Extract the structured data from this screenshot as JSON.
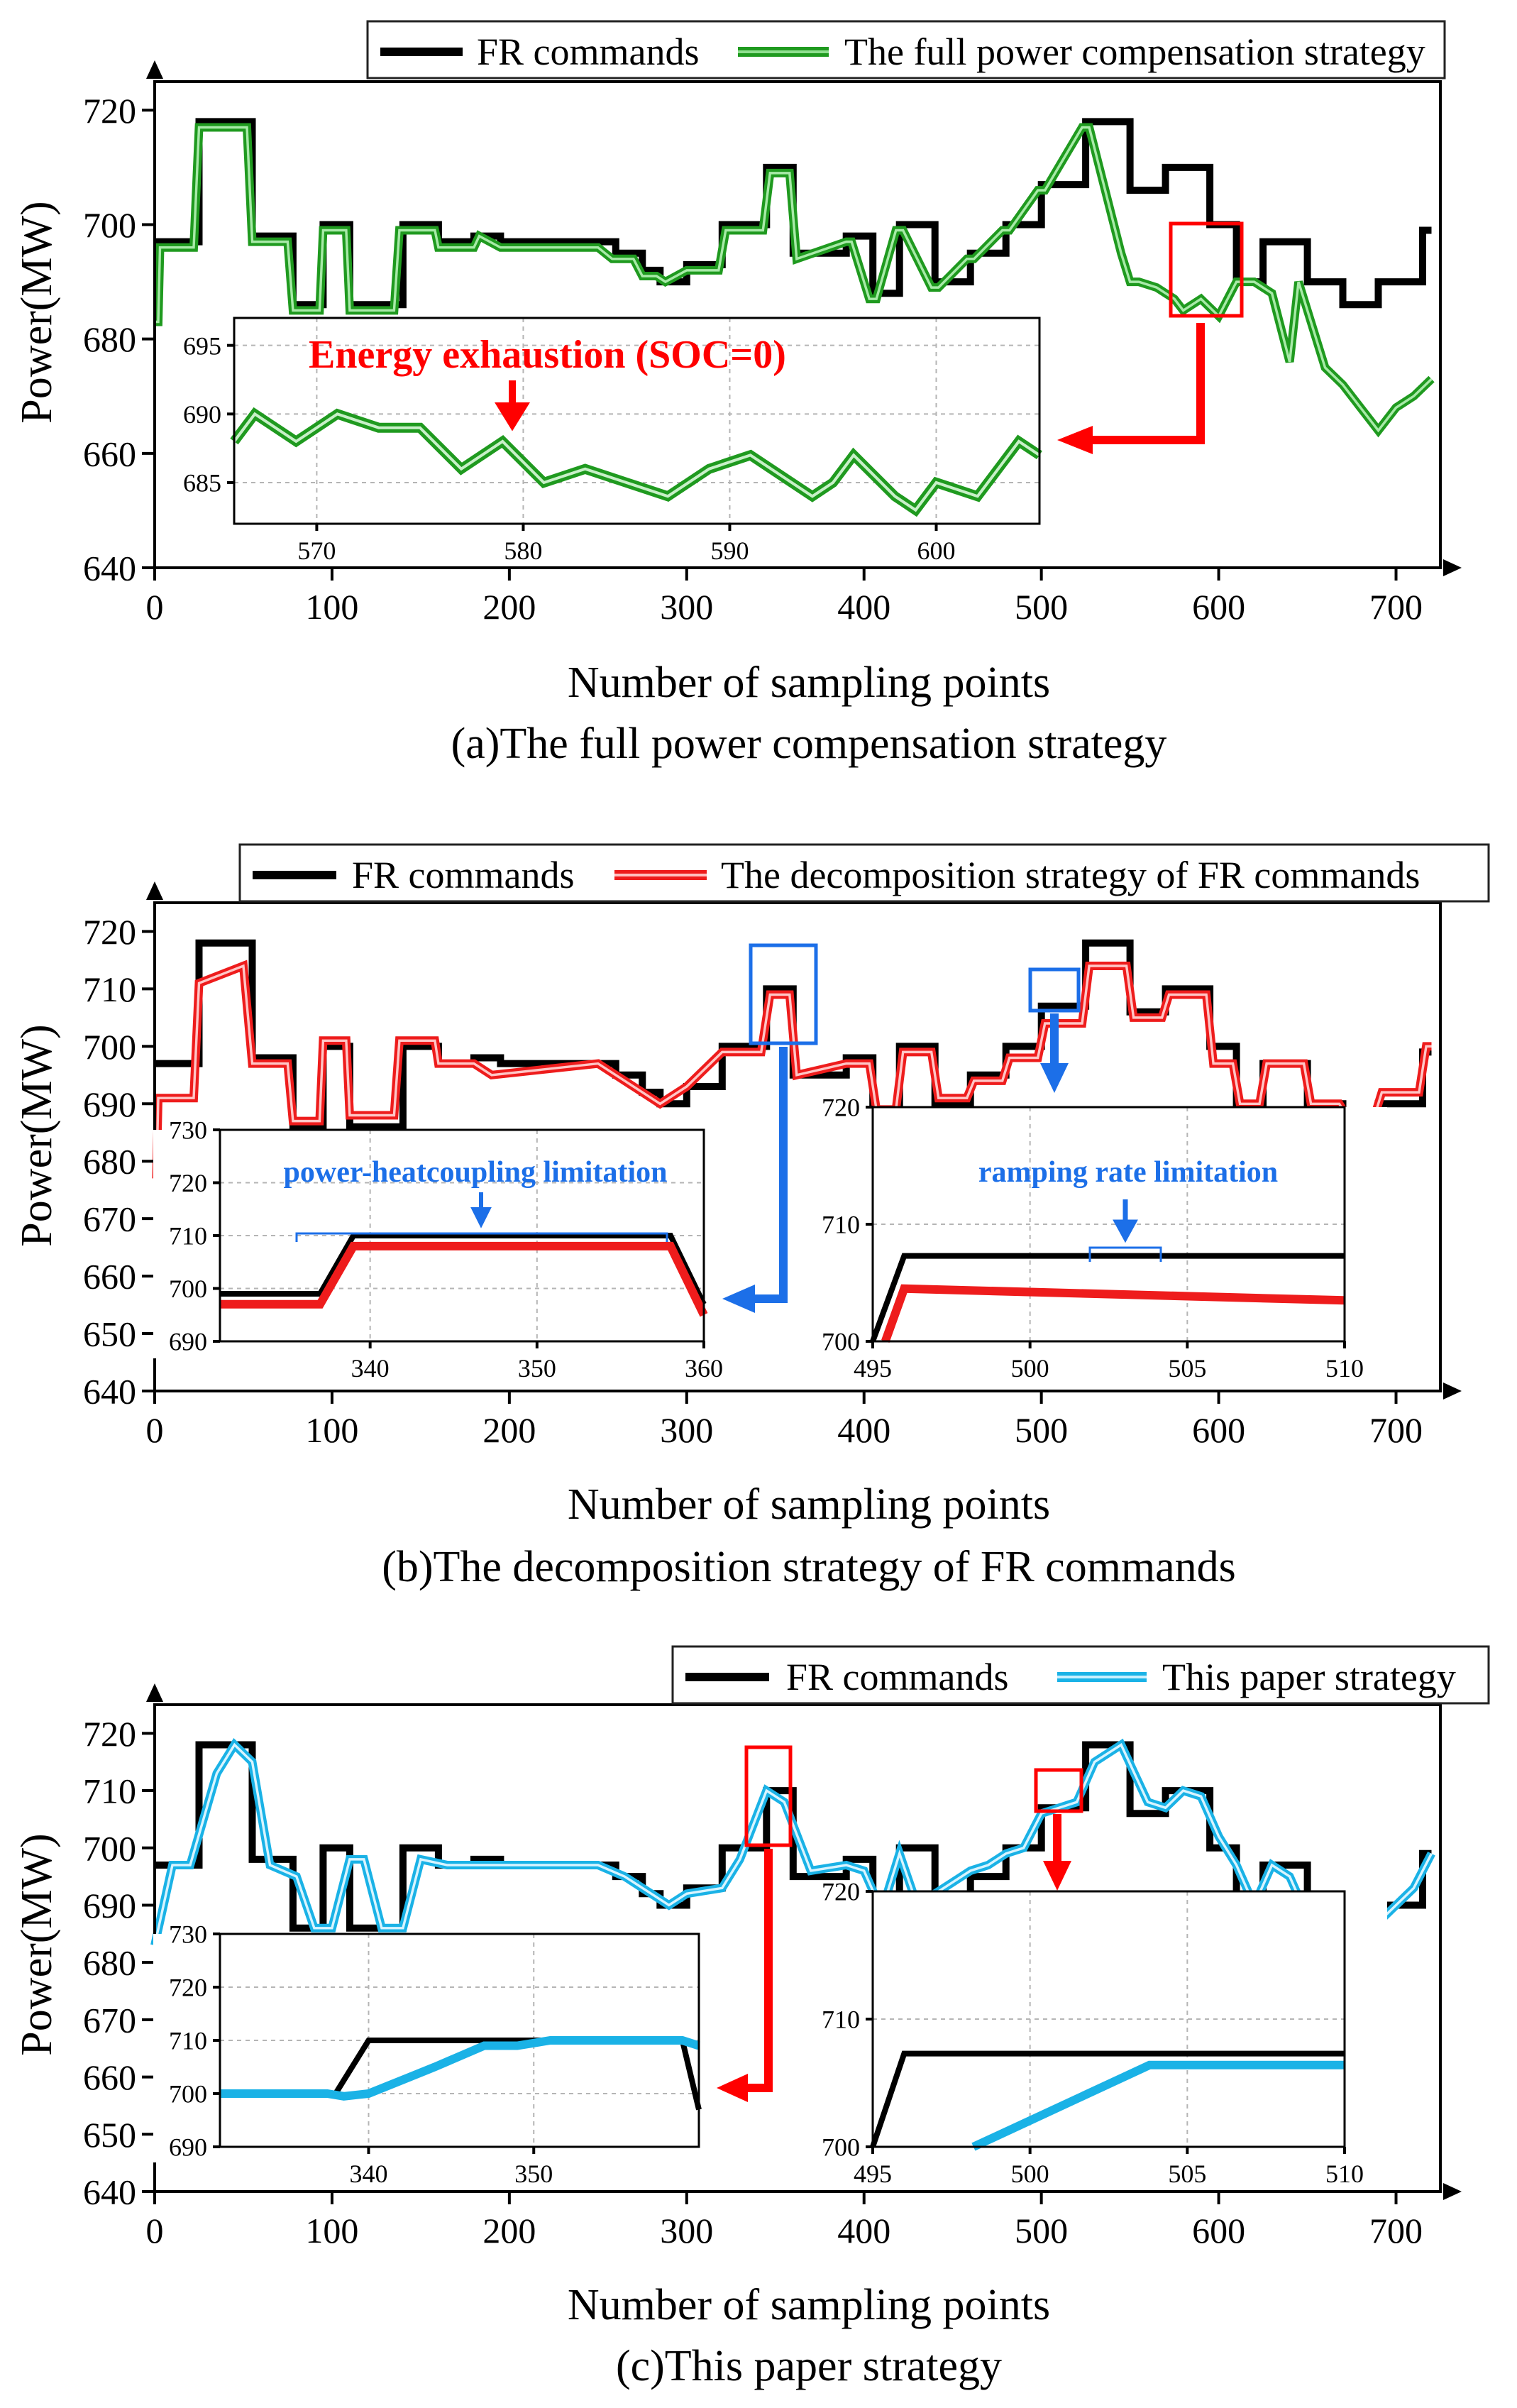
{
  "colors": {
    "fr": "#000000",
    "green": "#1f9a1f",
    "red": "#ee1c1c",
    "cyan": "#1ab2e6",
    "blue_annot": "#1c6fe8",
    "red_annot": "#ff0000",
    "grid": "#b5b5b5"
  },
  "chart_data": [
    {
      "type": "line",
      "caption": "(a)The full power compensation strategy",
      "xlabel": "Number of sampling points",
      "ylabel": "Power(MW)",
      "xlim": [
        0,
        725
      ],
      "ylim": [
        640,
        725
      ],
      "xticks": [
        0,
        100,
        200,
        300,
        400,
        500,
        600,
        700
      ],
      "yticks": [
        640,
        660,
        680,
        700,
        720
      ],
      "legend_position": "top-right",
      "series": [
        {
          "name": "FR commands",
          "style": "step",
          "x": [
            0,
            25,
            55,
            78,
            95,
            110,
            135,
            140,
            160,
            180,
            195,
            250,
            260,
            275,
            285,
            300,
            320,
            345,
            360,
            390,
            405,
            420,
            440,
            460,
            480,
            500,
            525,
            550,
            570,
            595,
            610,
            625,
            650,
            670,
            690,
            715
          ],
          "y": [
            697,
            718,
            698,
            686,
            700,
            686,
            686,
            700,
            697,
            698,
            697,
            697,
            695,
            692,
            690,
            693,
            700,
            710,
            695,
            698,
            688,
            700,
            690,
            695,
            700,
            707,
            718,
            706,
            710,
            700,
            690,
            697,
            690,
            686,
            690,
            699
          ]
        },
        {
          "name": "The full power compensation strategy",
          "style": "line",
          "x": [
            0,
            2,
            3,
            22,
            25,
            52,
            55,
            75,
            78,
            93,
            95,
            108,
            110,
            135,
            138,
            158,
            160,
            180,
            183,
            195,
            250,
            258,
            270,
            275,
            283,
            288,
            300,
            318,
            322,
            343,
            347,
            358,
            362,
            390,
            393,
            403,
            407,
            418,
            422,
            438,
            442,
            458,
            462,
            478,
            482,
            498,
            502,
            523,
            527,
            545,
            550,
            555,
            565,
            575,
            580,
            590,
            600,
            610,
            620,
            630,
            640,
            645,
            650,
            660,
            670,
            680,
            690,
            700,
            710,
            720
          ],
          "y": [
            683,
            683,
            696,
            696,
            717,
            717,
            697,
            697,
            685,
            685,
            699,
            699,
            685,
            685,
            699,
            699,
            696,
            696,
            698,
            696,
            696,
            694,
            694,
            691,
            691,
            690,
            692,
            692,
            699,
            699,
            709,
            709,
            694,
            697,
            697,
            687,
            687,
            699,
            699,
            689,
            689,
            694,
            694,
            699,
            699,
            706,
            706,
            717,
            717,
            695,
            690,
            690,
            689,
            687,
            685,
            687,
            684,
            690,
            690,
            688,
            676,
            690,
            685,
            675,
            672,
            668,
            664,
            668,
            670,
            673
          ]
        }
      ],
      "inset": {
        "xlim": [
          566,
          605
        ],
        "ylim": [
          682,
          697
        ],
        "xticks": [
          570,
          580,
          590,
          600
        ],
        "yticks": [
          685,
          690,
          695
        ],
        "annotation": "Energy exhaustion (SOC=0)",
        "series_x": [
          566,
          567,
          569,
          571,
          573,
          575,
          577,
          579,
          581,
          583,
          585,
          587,
          589,
          591,
          593,
          594,
          595,
          596,
          598,
          599,
          600,
          602,
          603,
          604,
          605
        ],
        "series_y": [
          688,
          690,
          688,
          690,
          689,
          689,
          686,
          688,
          685,
          686,
          685,
          684,
          686,
          687,
          685,
          684,
          685,
          687,
          684,
          683,
          685,
          684,
          686,
          688,
          687
        ]
      }
    },
    {
      "type": "line",
      "caption": "(b)The decomposition strategy of FR commands",
      "xlabel": "Number of sampling points",
      "ylabel": "Power(MW)",
      "xlim": [
        0,
        725
      ],
      "ylim": [
        640,
        725
      ],
      "xticks": [
        0,
        100,
        200,
        300,
        400,
        500,
        600,
        700
      ],
      "yticks": [
        640,
        650,
        660,
        670,
        680,
        690,
        700,
        710,
        720
      ],
      "legend_position": "top-right",
      "series": [
        {
          "name": "FR commands",
          "style": "step",
          "x": [
            0,
            25,
            55,
            78,
            95,
            110,
            135,
            140,
            160,
            180,
            195,
            250,
            260,
            275,
            285,
            300,
            320,
            345,
            360,
            390,
            405,
            420,
            440,
            460,
            480,
            500,
            525,
            550,
            570,
            595,
            610,
            625,
            650,
            670,
            690,
            715
          ],
          "y": [
            697,
            718,
            698,
            686,
            700,
            686,
            686,
            700,
            697,
            698,
            697,
            697,
            695,
            692,
            690,
            693,
            700,
            710,
            695,
            698,
            688,
            700,
            690,
            695,
            700,
            707,
            718,
            706,
            710,
            700,
            690,
            697,
            690,
            686,
            690,
            699
          ]
        },
        {
          "name": "The decomposition strategy of FR commands",
          "style": "line",
          "x": [
            0,
            1,
            2,
            22,
            25,
            50,
            55,
            75,
            78,
            93,
            95,
            108,
            110,
            135,
            138,
            158,
            160,
            180,
            190,
            250,
            260,
            275,
            285,
            300,
            320,
            342,
            347,
            358,
            362,
            390,
            403,
            407,
            418,
            422,
            438,
            442,
            458,
            462,
            478,
            482,
            498,
            502,
            523,
            527,
            548,
            552,
            568,
            572,
            593,
            597,
            608,
            612,
            623,
            627,
            648,
            652,
            668,
            672,
            688,
            692,
            713,
            717,
            720
          ],
          "y": [
            677,
            677,
            691,
            691,
            711,
            714,
            697,
            697,
            687,
            687,
            701,
            701,
            688,
            688,
            701,
            701,
            697,
            697,
            695,
            697,
            695,
            692,
            690,
            693,
            699,
            699,
            709,
            709,
            695,
            697,
            697,
            689,
            689,
            699,
            699,
            691,
            691,
            694,
            694,
            698,
            698,
            704,
            704,
            714,
            714,
            705,
            705,
            709,
            709,
            697,
            697,
            690,
            690,
            697,
            697,
            690,
            690,
            688,
            688,
            692,
            692,
            700,
            700
          ]
        }
      ],
      "insets": [
        {
          "xlim": [
            331,
            360
          ],
          "ylim": [
            690,
            730
          ],
          "xticks": [
            340,
            350,
            360
          ],
          "yticks": [
            690,
            700,
            710,
            720,
            730
          ],
          "annotation": "power-heatcoupling limitation",
          "fr_x": [
            331,
            337,
            339,
            358,
            360
          ],
          "fr_y": [
            699,
            699,
            710,
            710,
            697
          ],
          "strategy_x": [
            331,
            337,
            339,
            358,
            360
          ],
          "strategy_y": [
            697,
            697,
            708,
            708,
            695
          ]
        },
        {
          "xlim": [
            495,
            510
          ],
          "ylim": [
            700,
            720
          ],
          "xticks": [
            495,
            500,
            505,
            510
          ],
          "yticks": [
            700,
            710,
            720
          ],
          "annotation": "ramping rate limitation",
          "fr_x": [
            495,
            496,
            510
          ],
          "fr_y": [
            700,
            707.3,
            707.3
          ],
          "strategy_x": [
            495.4,
            496,
            510
          ],
          "strategy_y": [
            700,
            704.5,
            703.5
          ]
        }
      ]
    },
    {
      "type": "line",
      "caption": "(c)This paper strategy",
      "xlabel": "Number of sampling points",
      "ylabel": "Power(MW)",
      "xlim": [
        0,
        725
      ],
      "ylim": [
        640,
        725
      ],
      "xticks": [
        0,
        100,
        200,
        300,
        400,
        500,
        600,
        700
      ],
      "yticks": [
        640,
        650,
        660,
        670,
        680,
        690,
        700,
        710,
        720
      ],
      "legend_position": "top-right",
      "series": [
        {
          "name": "FR commands",
          "style": "step",
          "x": [
            0,
            25,
            55,
            78,
            95,
            110,
            135,
            140,
            160,
            180,
            195,
            250,
            260,
            275,
            285,
            300,
            320,
            345,
            360,
            390,
            405,
            420,
            440,
            460,
            480,
            500,
            525,
            550,
            570,
            595,
            610,
            625,
            650,
            670,
            690,
            715
          ],
          "y": [
            697,
            718,
            698,
            686,
            700,
            686,
            686,
            700,
            697,
            698,
            697,
            697,
            695,
            692,
            690,
            693,
            700,
            710,
            695,
            698,
            688,
            700,
            690,
            695,
            700,
            707,
            718,
            706,
            710,
            700,
            690,
            697,
            690,
            686,
            690,
            699
          ]
        },
        {
          "name": "This paper strategy",
          "style": "line",
          "x": [
            0,
            10,
            20,
            35,
            45,
            55,
            65,
            80,
            90,
            100,
            110,
            118,
            128,
            140,
            150,
            165,
            180,
            200,
            250,
            265,
            280,
            290,
            300,
            320,
            330,
            345,
            355,
            370,
            390,
            400,
            410,
            420,
            430,
            440,
            450,
            460,
            470,
            480,
            490,
            500,
            510,
            520,
            530,
            545,
            560,
            570,
            580,
            590,
            600,
            610,
            620,
            630,
            640,
            650,
            660,
            670,
            680,
            690,
            700,
            710,
            720
          ],
          "y": [
            683,
            697,
            697,
            713,
            718,
            715,
            697,
            695,
            686,
            686,
            698,
            698,
            686,
            686,
            698,
            697,
            697,
            697,
            697,
            695,
            692,
            690,
            692,
            693,
            698,
            710,
            708,
            696,
            697,
            696,
            689,
            699,
            690,
            692,
            694,
            696,
            697,
            699,
            700,
            706,
            707,
            708,
            715,
            718,
            708,
            707,
            710,
            709,
            702,
            697,
            690,
            697,
            695,
            688,
            687,
            686,
            685,
            687,
            690,
            693,
            699
          ]
        }
      ],
      "insets": [
        {
          "xlim": [
            331,
            360
          ],
          "ylim": [
            690,
            730
          ],
          "xticks": [
            340,
            350
          ],
          "yticks": [
            690,
            700,
            710,
            720,
            730
          ],
          "fr_x": [
            331,
            338,
            340,
            359,
            360
          ],
          "fr_y": [
            700,
            700,
            710,
            710,
            697
          ],
          "strategy_x": [
            331,
            337.5,
            338.5,
            340,
            344,
            347,
            349,
            351,
            359,
            360
          ],
          "strategy_y": [
            700,
            700,
            699.5,
            700,
            705,
            709,
            709,
            710,
            710,
            709
          ]
        },
        {
          "xlim": [
            495,
            510
          ],
          "ylim": [
            700,
            720
          ],
          "xticks": [
            495,
            500,
            505,
            510
          ],
          "yticks": [
            700,
            710,
            720
          ],
          "fr_x": [
            495,
            496,
            510
          ],
          "fr_y": [
            700,
            707.3,
            707.3
          ],
          "strategy_x": [
            498.2,
            503.8,
            510
          ],
          "strategy_y": [
            700,
            706.4,
            706.4
          ]
        }
      ]
    }
  ]
}
